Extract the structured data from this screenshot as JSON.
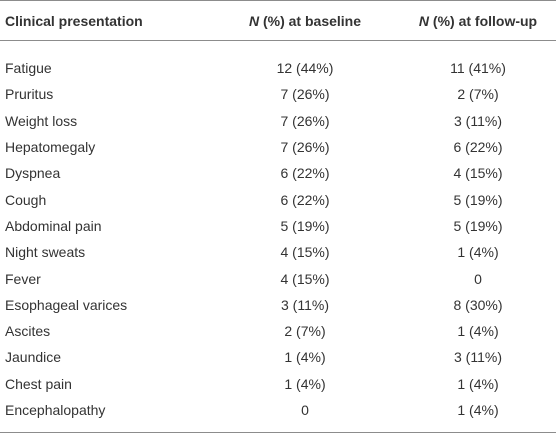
{
  "table": {
    "headers": [
      "Clinical presentation",
      "N (%) at baseline",
      "N (%) at follow-up"
    ],
    "rows": [
      [
        "Fatigue",
        "12 (44%)",
        "11 (41%)"
      ],
      [
        "Pruritus",
        "7 (26%)",
        "2 (7%)"
      ],
      [
        "Weight loss",
        "7 (26%)",
        "3 (11%)"
      ],
      [
        "Hepatomegaly",
        "7 (26%)",
        "6 (22%)"
      ],
      [
        "Dyspnea",
        "6 (22%)",
        "4 (15%)"
      ],
      [
        "Cough",
        "6 (22%)",
        "5 (19%)"
      ],
      [
        "Abdominal pain",
        "5 (19%)",
        "5 (19%)"
      ],
      [
        "Night sweats",
        "4 (15%)",
        "1 (4%)"
      ],
      [
        "Fever",
        "4 (15%)",
        "0"
      ],
      [
        "Esophageal varices",
        "3 (11%)",
        "8 (30%)"
      ],
      [
        "Ascites",
        "2 (7%)",
        "1 (4%)"
      ],
      [
        "Jaundice",
        "1 (4%)",
        "3 (11%)"
      ],
      [
        "Chest pain",
        "1 (4%)",
        "1 (4%)"
      ],
      [
        "Encephalopathy",
        "0",
        "1 (4%)"
      ]
    ]
  }
}
